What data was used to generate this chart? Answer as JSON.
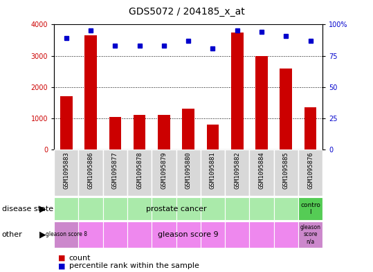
{
  "title": "GDS5072 / 204185_x_at",
  "samples": [
    "GSM1095883",
    "GSM1095886",
    "GSM1095877",
    "GSM1095878",
    "GSM1095879",
    "GSM1095880",
    "GSM1095881",
    "GSM1095882",
    "GSM1095884",
    "GSM1095885",
    "GSM1095876"
  ],
  "counts": [
    1700,
    3650,
    1050,
    1100,
    1100,
    1300,
    800,
    3750,
    3000,
    2600,
    1350
  ],
  "percentile": [
    89,
    95,
    83,
    83,
    83,
    87,
    81,
    95,
    94,
    91,
    87
  ],
  "ylim_left": [
    0,
    4000
  ],
  "ylim_right": [
    0,
    100
  ],
  "yticks_left": [
    0,
    1000,
    2000,
    3000,
    4000
  ],
  "yticks_right": [
    0,
    25,
    50,
    75,
    100
  ],
  "bar_color": "#cc0000",
  "dot_color": "#0000cc",
  "grid_color": "#000000",
  "bg_color": "#ffffff",
  "chart_bg": "#ffffff",
  "xticklabel_bg": "#d8d8d8",
  "ds_cancer_color": "#aaeaaa",
  "ds_ctrl_color": "#55cc55",
  "gleason8_color": "#cc88cc",
  "gleason9_color": "#ee88ee",
  "gleasonNA_color": "#cc88cc",
  "legend_count_color": "#cc0000",
  "legend_dot_color": "#0000cc",
  "title_fontsize": 10,
  "tick_fontsize": 7,
  "ann_fontsize": 8
}
